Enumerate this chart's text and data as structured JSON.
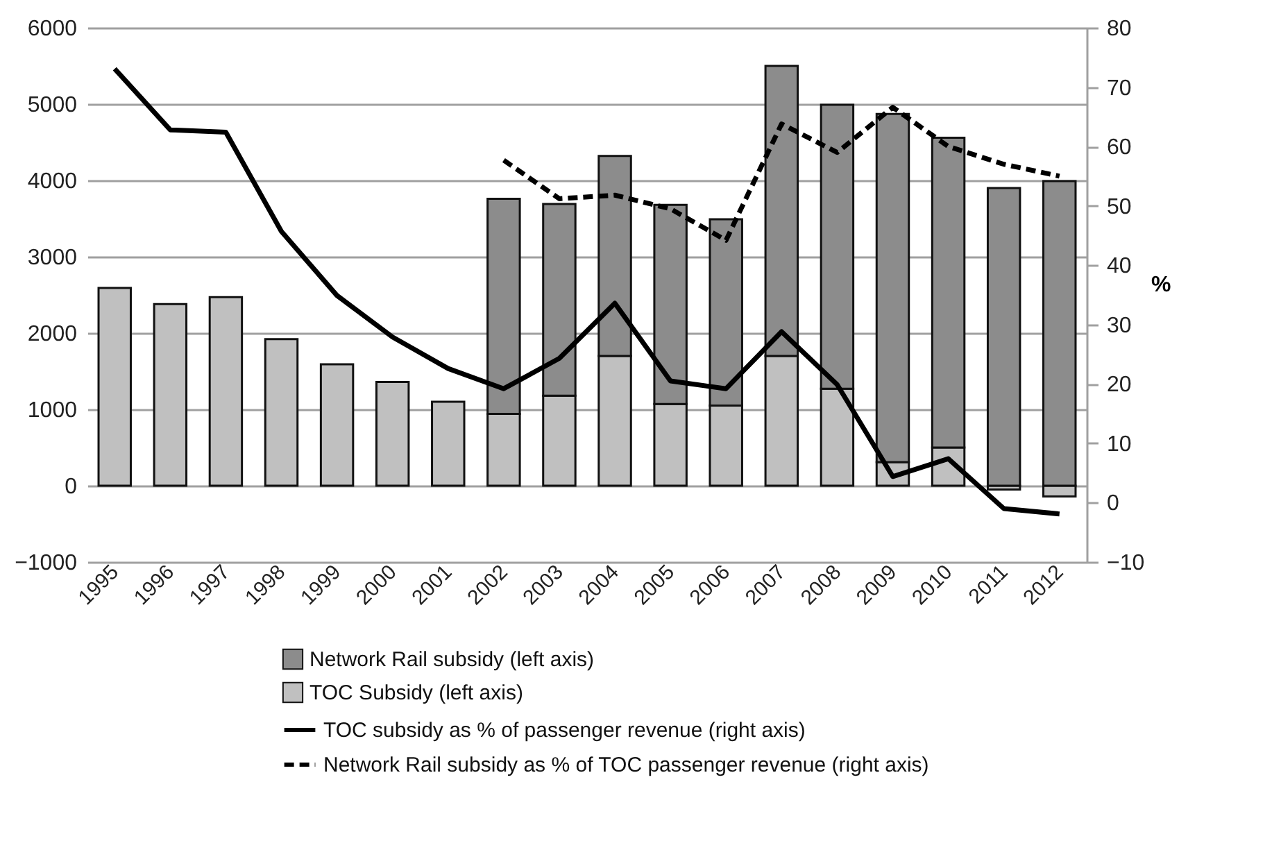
{
  "chart_data": {
    "type": "bar",
    "stacked": true,
    "y2label": "%",
    "categories": [
      "1995",
      "1996",
      "1997",
      "1998",
      "1999",
      "2000",
      "2001",
      "2002",
      "2003",
      "2004",
      "2005",
      "2006",
      "2007",
      "2008",
      "2009",
      "2010",
      "2011",
      "2012"
    ],
    "series": [
      {
        "name": "TOC Subsidy (left axis)",
        "color": "#c0c0c0",
        "values": [
          2590,
          2380,
          2470,
          1920,
          1590,
          1360,
          1100,
          940,
          1180,
          1700,
          1070,
          1050,
          1700,
          1270,
          310,
          500,
          -50,
          -140
        ]
      },
      {
        "name": "Network Rail subsidy (left axis)",
        "color": "#8c8c8c",
        "values": [
          null,
          null,
          null,
          null,
          null,
          null,
          null,
          2820,
          2510,
          2620,
          2610,
          2440,
          3800,
          3720,
          4560,
          4060,
          3900,
          3990
        ]
      },
      {
        "name": "TOC subsidy as % of passenger revenue (right axis)",
        "type": "line",
        "axis": "y2",
        "color": "#000000",
        "line_style": "solid",
        "values": [
          73.1,
          62.8,
          62.4,
          45.7,
          34.9,
          27.9,
          22.6,
          19.2,
          24.3,
          33.6,
          20.5,
          19.2,
          28.8,
          19.9,
          4.4,
          7.4,
          -1,
          -1.9
        ]
      },
      {
        "name": "Network Rail subsidy as % of TOC passenger revenue (right axis)",
        "type": "line",
        "axis": "y2",
        "color": "#000000",
        "line_style": "dashed",
        "values": [
          null,
          null,
          null,
          null,
          null,
          null,
          null,
          57.7,
          51.2,
          51.8,
          49.5,
          44.2,
          63.8,
          59,
          66.6,
          60,
          57,
          55
        ]
      }
    ],
    "ylim": [
      -1000,
      6000
    ],
    "yticks": [
      -1000,
      0,
      1000,
      2000,
      3000,
      4000,
      5000,
      6000
    ],
    "y2lim": [
      -10,
      80
    ],
    "y2ticks": [
      -10,
      0,
      10,
      20,
      30,
      40,
      50,
      60,
      70,
      80
    ],
    "grid": "y",
    "legend": "bottom"
  }
}
